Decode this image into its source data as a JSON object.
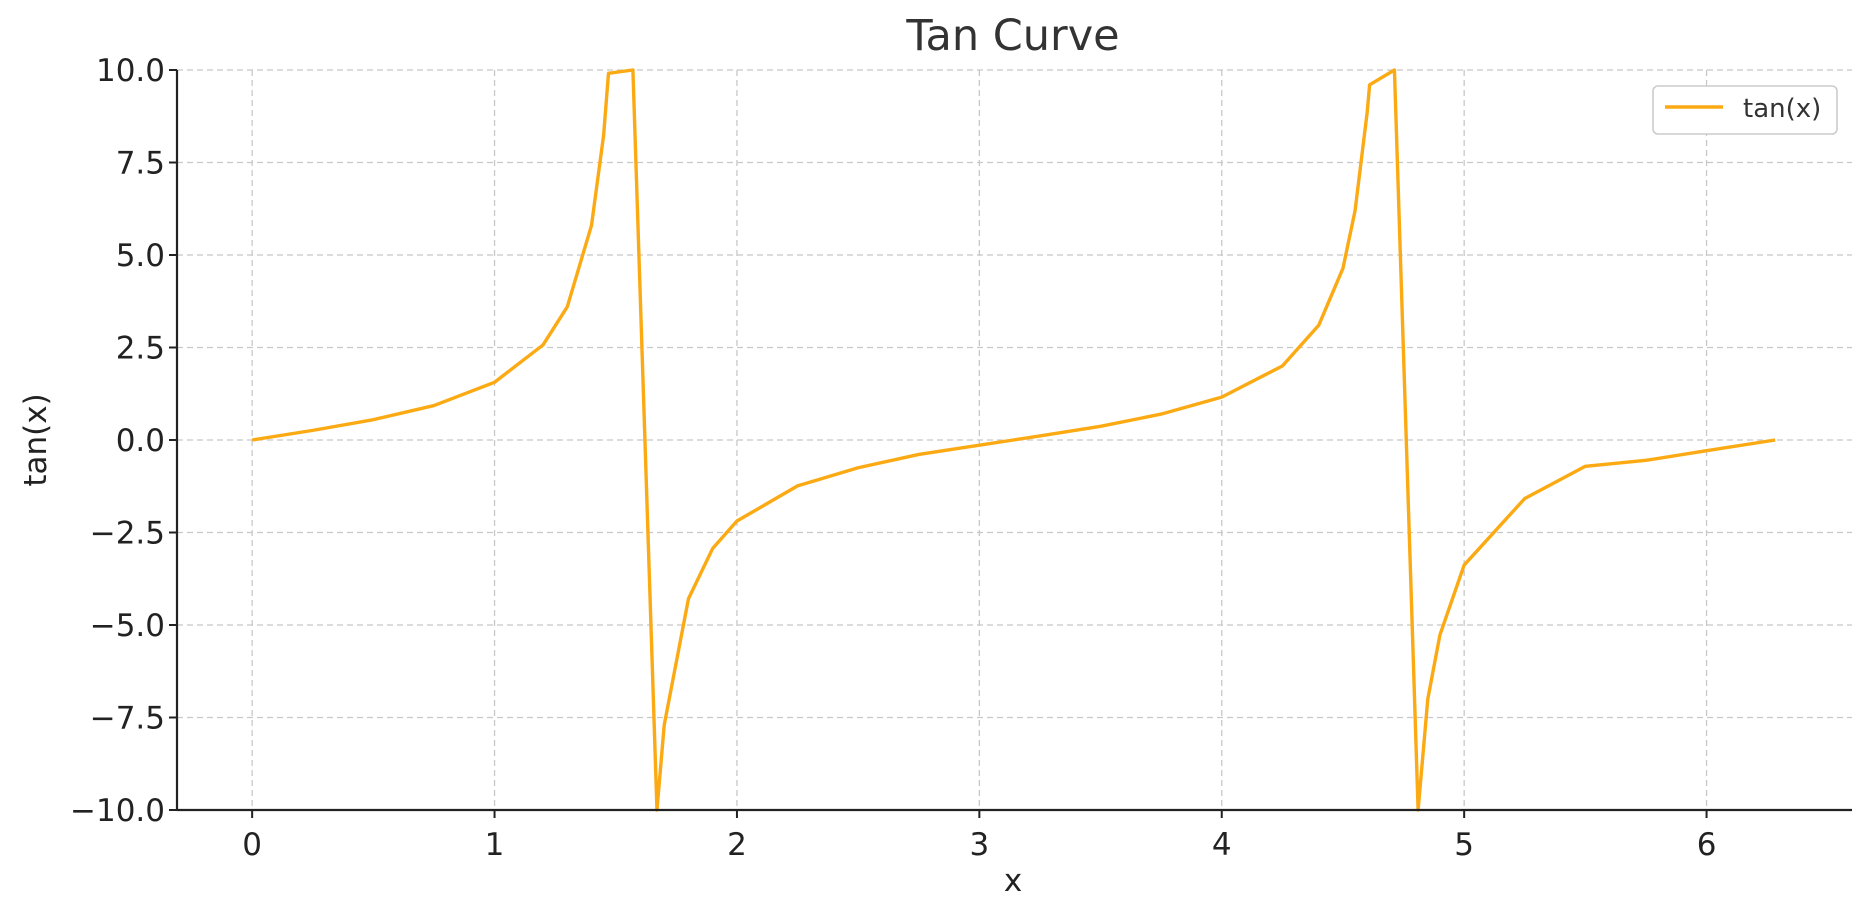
{
  "chart_data": {
    "type": "line",
    "title": "Tan Curve",
    "xlabel": "x",
    "ylabel": "tan(x)",
    "xlim": [
      -0.31,
      6.6
    ],
    "ylim": [
      -10,
      10
    ],
    "xticks": [
      0,
      1,
      2,
      3,
      4,
      5,
      6
    ],
    "xtick_labels": [
      "0",
      "1",
      "2",
      "3",
      "4",
      "5",
      "6"
    ],
    "yticks": [
      10,
      7.5,
      5,
      2.5,
      0,
      -2.5,
      -5,
      -7.5,
      -10
    ],
    "ytick_labels": [
      "10.0",
      "7.5",
      "5.0",
      "2.5",
      "0.0",
      "−2.5",
      "−5.0",
      "−7.5",
      "−10.0"
    ],
    "grid": true,
    "legend_position": "top-right",
    "function": "tan(x)",
    "x_domain": [
      0,
      6.283
    ],
    "series": [
      {
        "name": "tan(x)",
        "color": "#fbaa14",
        "x": [
          0,
          0.25,
          0.5,
          0.75,
          1.0,
          1.2,
          1.3,
          1.4,
          1.45,
          1.47,
          1.5708,
          1.67,
          1.7,
          1.8,
          1.9,
          2.0,
          2.25,
          2.5,
          2.75,
          3.0,
          3.14,
          3.25,
          3.5,
          3.75,
          4.0,
          4.25,
          4.4,
          4.5,
          4.55,
          4.6,
          4.61,
          4.7124,
          4.81,
          4.85,
          4.9,
          5.0,
          5.25,
          5.5,
          5.75,
          6.0,
          6.283
        ],
        "y": [
          0,
          0.26,
          0.55,
          0.93,
          1.56,
          2.57,
          3.6,
          5.8,
          8.24,
          9.91,
          10,
          -10,
          -7.7,
          -4.29,
          -2.93,
          -2.19,
          -1.24,
          -0.75,
          -0.39,
          -0.14,
          0,
          0.11,
          0.37,
          0.7,
          1.16,
          2.0,
          3.1,
          4.64,
          6.2,
          8.86,
          9.6,
          10,
          -10,
          -7.0,
          -5.27,
          -3.38,
          -1.58,
          -0.71,
          -0.55,
          -0.29,
          0
        ]
      }
    ]
  }
}
